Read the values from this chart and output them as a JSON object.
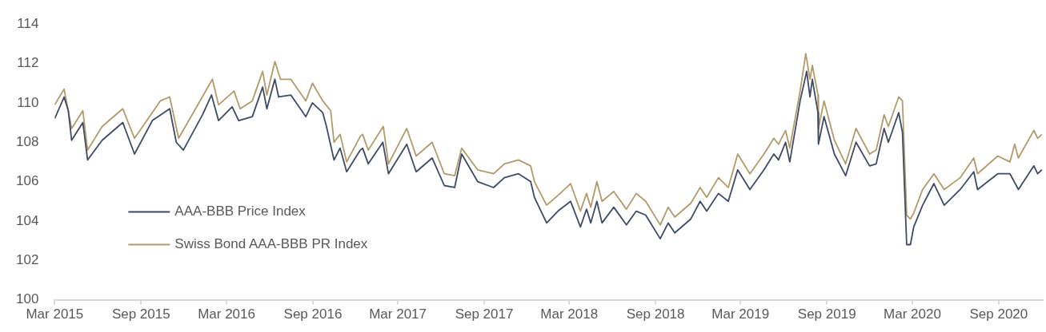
{
  "chart_data": {
    "type": "line",
    "legend": "bottom left",
    "ylim": [
      100,
      114
    ],
    "yticks": [
      100,
      102,
      104,
      106,
      108,
      110,
      112,
      114
    ],
    "xlim": [
      "2015-03-01",
      "2020-12-04"
    ],
    "xticks": [
      {
        "value": "2015-03-01",
        "label": "Mar 2015"
      },
      {
        "value": "2015-09-01",
        "label": "Sep 2015"
      },
      {
        "value": "2016-03-01",
        "label": "Mar 2016"
      },
      {
        "value": "2016-09-01",
        "label": "Sep 2016"
      },
      {
        "value": "2017-03-01",
        "label": "Mar 2017"
      },
      {
        "value": "2017-09-01",
        "label": "Sep 2017"
      },
      {
        "value": "2018-03-01",
        "label": "Mar 2018"
      },
      {
        "value": "2018-09-01",
        "label": "Sep 2018"
      },
      {
        "value": "2019-03-01",
        "label": "Mar 2019"
      },
      {
        "value": "2019-09-01",
        "label": "Sep 2019"
      },
      {
        "value": "2020-03-01",
        "label": "Mar 2020"
      },
      {
        "value": "2020-09-01",
        "label": "Sep 2020"
      }
    ],
    "series": [
      {
        "name": "AAA-BBB Price Index",
        "color": "#3d4b66",
        "x": [
          "2015-03-01",
          "2015-03-21",
          "2015-03-30",
          "2015-04-06",
          "2015-04-30",
          "2015-05-10",
          "2015-06-10",
          "2015-07-24",
          "2015-08-18",
          "2015-09-25",
          "2015-11-01",
          "2015-11-15",
          "2015-11-30",
          "2016-01-10",
          "2016-01-29",
          "2016-02-13",
          "2016-03-13",
          "2016-03-27",
          "2016-04-25",
          "2016-05-17",
          "2016-05-26",
          "2016-06-12",
          "2016-06-20",
          "2016-07-16",
          "2016-08-17",
          "2016-08-31",
          "2016-09-22",
          "2016-09-30",
          "2016-10-16",
          "2016-10-29",
          "2016-11-12",
          "2016-12-11",
          "2016-12-16",
          "2016-12-28",
          "2017-01-28",
          "2017-02-09",
          "2017-03-20",
          "2017-04-09",
          "2017-05-13",
          "2017-06-08",
          "2017-06-30",
          "2017-07-15",
          "2017-08-18",
          "2017-09-21",
          "2017-10-14",
          "2017-11-13",
          "2017-12-09",
          "2017-12-17",
          "2018-01-12",
          "2018-02-05",
          "2018-03-04",
          "2018-03-25",
          "2018-04-07",
          "2018-04-16",
          "2018-04-29",
          "2018-05-10",
          "2018-06-04",
          "2018-07-01",
          "2018-07-22",
          "2018-08-11",
          "2018-09-11",
          "2018-09-28",
          "2018-10-12",
          "2018-11-15",
          "2018-12-05",
          "2018-12-19",
          "2019-01-13",
          "2019-02-03",
          "2019-02-23",
          "2019-03-21",
          "2019-04-20",
          "2019-05-11",
          "2019-05-21",
          "2019-06-05",
          "2019-06-14",
          "2019-07-06",
          "2019-07-20",
          "2019-07-27",
          "2019-08-01",
          "2019-08-13",
          "2019-08-14",
          "2019-08-26",
          "2019-09-17",
          "2019-10-11",
          "2019-11-02",
          "2019-12-01",
          "2019-12-15",
          "2020-01-01",
          "2020-01-10",
          "2020-02-01",
          "2020-02-09",
          "2020-02-18",
          "2020-02-26",
          "2020-03-04",
          "2020-03-23",
          "2020-04-16",
          "2020-05-08",
          "2020-06-11",
          "2020-07-10",
          "2020-07-18",
          "2020-08-30",
          "2020-09-25",
          "2020-10-13",
          "2020-11-15",
          "2020-11-23",
          "2020-12-02"
        ],
        "values": [
          109.2,
          110.3,
          109.6,
          108.1,
          109.0,
          107.1,
          108.1,
          109.0,
          107.4,
          109.1,
          109.7,
          108.0,
          107.6,
          109.4,
          110.4,
          109.1,
          109.8,
          109.1,
          109.3,
          110.8,
          109.7,
          111.2,
          110.3,
          110.4,
          109.3,
          110.0,
          109.5,
          108.8,
          107.1,
          107.7,
          106.5,
          107.6,
          107.7,
          106.9,
          108.0,
          106.4,
          107.9,
          106.5,
          107.2,
          105.8,
          105.7,
          107.4,
          106.0,
          105.7,
          106.2,
          106.4,
          106.0,
          105.2,
          103.9,
          104.5,
          105.0,
          103.7,
          104.6,
          103.9,
          105.0,
          103.9,
          104.7,
          103.8,
          104.5,
          104.3,
          103.1,
          103.9,
          103.4,
          104.1,
          105.0,
          104.5,
          105.4,
          105.0,
          106.6,
          105.6,
          106.6,
          107.4,
          107.1,
          108.0,
          107.0,
          110.1,
          111.6,
          110.3,
          111.2,
          109.5,
          107.9,
          109.3,
          107.4,
          106.3,
          108.0,
          106.8,
          106.9,
          108.7,
          108.0,
          109.5,
          108.5,
          102.8,
          102.8,
          103.7,
          104.8,
          105.9,
          104.8,
          105.6,
          106.5,
          105.6,
          106.4,
          106.4,
          105.6,
          106.8,
          106.4,
          106.6
        ]
      },
      {
        "name": "Swiss Bond AAA-BBB PR Index",
        "color": "#b39a6b",
        "x": [
          "2015-03-01",
          "2015-03-21",
          "2015-04-06",
          "2015-04-30",
          "2015-05-10",
          "2015-06-10",
          "2015-07-24",
          "2015-08-18",
          "2015-10-12",
          "2015-11-01",
          "2015-11-20",
          "2016-01-31",
          "2016-02-13",
          "2016-03-17",
          "2016-03-30",
          "2016-04-25",
          "2016-05-17",
          "2016-05-26",
          "2016-06-12",
          "2016-06-24",
          "2016-07-16",
          "2016-08-17",
          "2016-08-31",
          "2016-09-22",
          "2016-10-09",
          "2016-10-16",
          "2016-10-29",
          "2016-11-12",
          "2016-12-11",
          "2016-12-16",
          "2016-12-28",
          "2017-01-29",
          "2017-02-09",
          "2017-03-20",
          "2017-04-09",
          "2017-05-13",
          "2017-06-08",
          "2017-06-30",
          "2017-07-15",
          "2017-08-18",
          "2017-09-21",
          "2017-10-14",
          "2017-11-13",
          "2017-12-09",
          "2017-12-17",
          "2018-01-12",
          "2018-02-05",
          "2018-03-04",
          "2018-03-25",
          "2018-04-07",
          "2018-04-16",
          "2018-04-29",
          "2018-05-10",
          "2018-06-04",
          "2018-07-01",
          "2018-07-22",
          "2018-08-11",
          "2018-09-11",
          "2018-09-28",
          "2018-10-12",
          "2018-11-15",
          "2018-12-05",
          "2018-12-19",
          "2019-01-13",
          "2019-02-03",
          "2019-02-23",
          "2019-03-21",
          "2019-04-20",
          "2019-05-11",
          "2019-05-21",
          "2019-06-05",
          "2019-06-14",
          "2019-07-06",
          "2019-07-18",
          "2019-07-27",
          "2019-08-01",
          "2019-08-13",
          "2019-08-14",
          "2019-08-26",
          "2019-09-17",
          "2019-10-11",
          "2019-11-02",
          "2019-12-01",
          "2019-12-15",
          "2020-01-01",
          "2020-01-10",
          "2020-02-01",
          "2020-02-09",
          "2020-02-18",
          "2020-02-26",
          "2020-03-04",
          "2020-03-23",
          "2020-04-16",
          "2020-05-08",
          "2020-06-11",
          "2020-07-10",
          "2020-07-18",
          "2020-08-30",
          "2020-09-25",
          "2020-10-05",
          "2020-10-13",
          "2020-11-15",
          "2020-11-23",
          "2020-12-02"
        ],
        "values": [
          109.9,
          110.7,
          108.7,
          109.6,
          107.6,
          108.8,
          109.7,
          108.2,
          110.1,
          110.3,
          108.2,
          111.2,
          109.9,
          110.6,
          109.7,
          110.1,
          111.6,
          110.4,
          112.1,
          111.2,
          111.2,
          110.1,
          111.0,
          110.1,
          109.6,
          108.0,
          108.4,
          107.0,
          108.3,
          108.4,
          107.6,
          108.8,
          106.9,
          108.7,
          107.3,
          108.0,
          106.4,
          106.3,
          107.7,
          106.6,
          106.4,
          106.9,
          107.1,
          106.8,
          106.0,
          104.8,
          105.3,
          105.9,
          104.5,
          105.4,
          104.7,
          106.0,
          105.0,
          105.5,
          104.6,
          105.4,
          105.0,
          103.8,
          104.7,
          104.2,
          104.9,
          105.7,
          105.2,
          106.2,
          105.7,
          107.4,
          106.4,
          107.4,
          108.2,
          107.9,
          108.6,
          107.7,
          110.6,
          112.5,
          111.2,
          111.9,
          110.4,
          108.7,
          110.1,
          108.1,
          106.9,
          108.7,
          107.4,
          107.6,
          109.4,
          108.8,
          110.3,
          110.1,
          104.3,
          104.1,
          104.4,
          105.6,
          106.4,
          105.6,
          106.2,
          107.2,
          106.4,
          107.3,
          107.0,
          107.9,
          107.2,
          108.6,
          108.2,
          108.4
        ]
      }
    ]
  }
}
